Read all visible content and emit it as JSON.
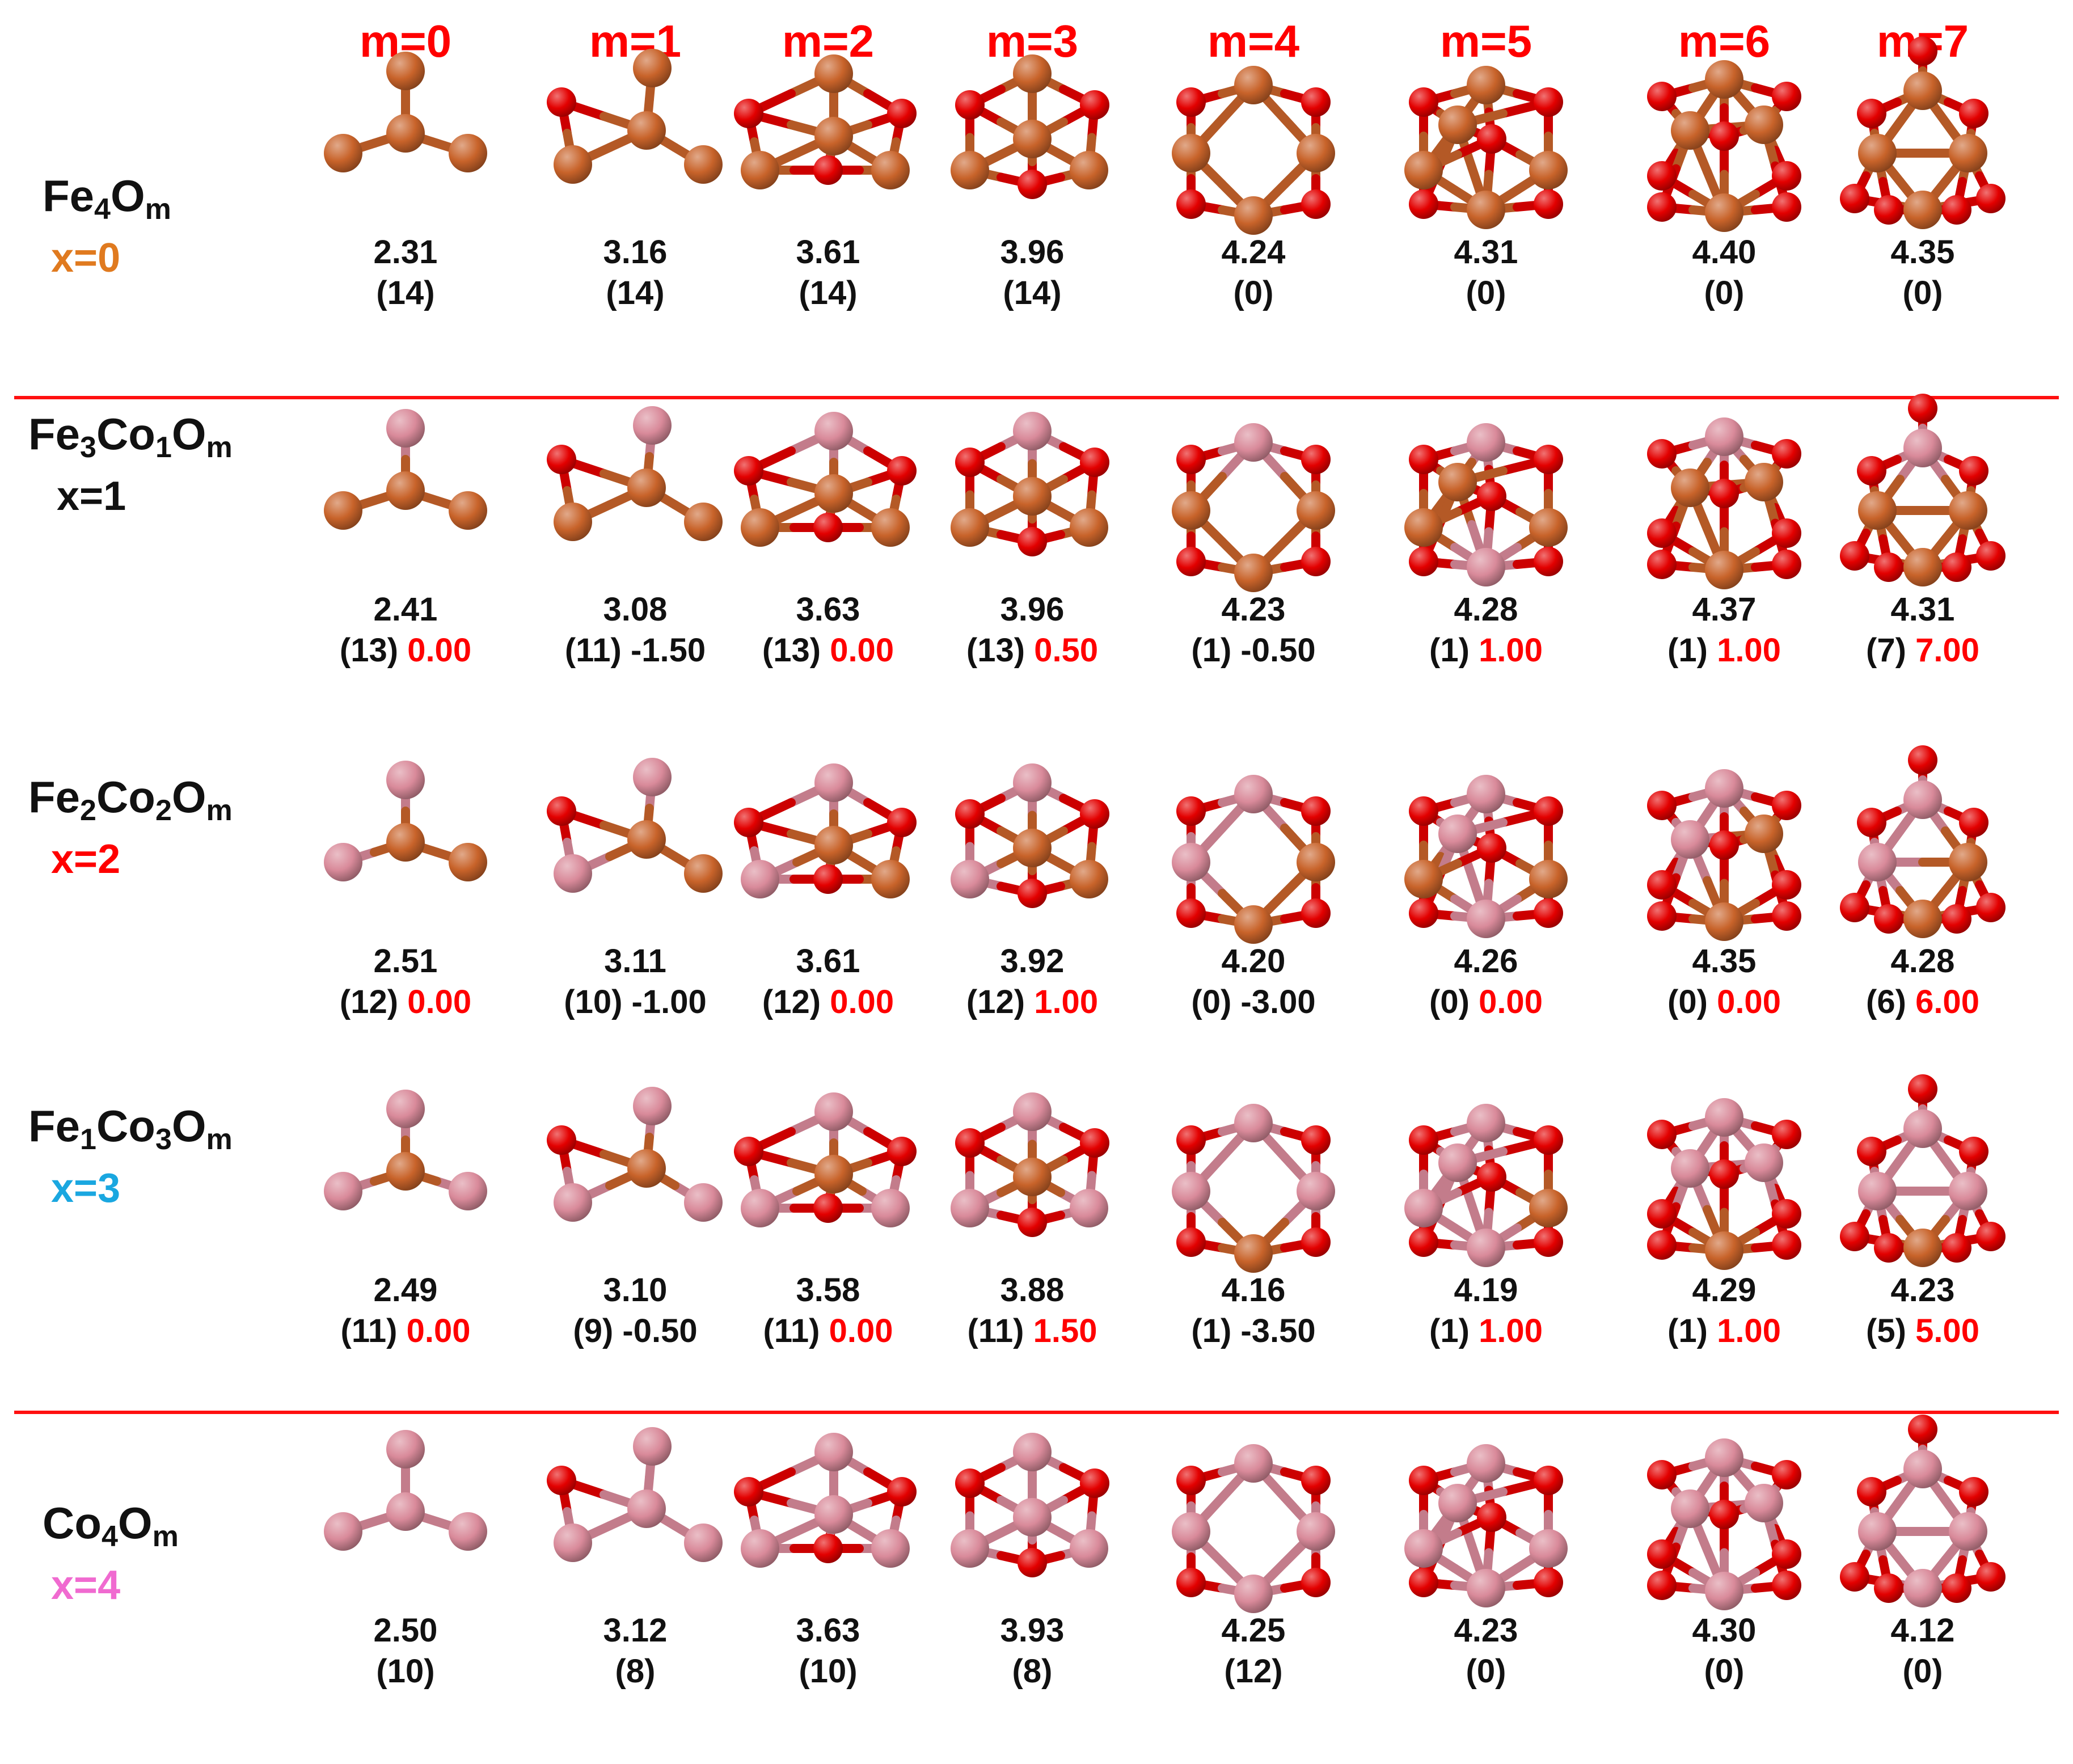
{
  "column_headers": [
    "m=0",
    "m=1",
    "m=2",
    "m=3",
    "m=4",
    "m=5",
    "m=6",
    "m=7"
  ],
  "legend_colors": {
    "Fe": "#c8632a",
    "Co": "#d98a9a",
    "O": "#e30000",
    "separator": "#ff1010"
  },
  "rows": [
    {
      "formula": [
        [
          "Fe",
          "4"
        ],
        [
          "O",
          "m"
        ]
      ],
      "x_label": "x=0",
      "x_color": "#e07a1f",
      "cells": [
        {
          "value": "2.31",
          "count": "(14)",
          "delta": ""
        },
        {
          "value": "3.16",
          "count": "(14)",
          "delta": ""
        },
        {
          "value": "3.61",
          "count": "(14)",
          "delta": ""
        },
        {
          "value": "3.96",
          "count": "(14)",
          "delta": ""
        },
        {
          "value": "4.24",
          "count": "(0)",
          "delta": ""
        },
        {
          "value": "4.31",
          "count": "(0)",
          "delta": ""
        },
        {
          "value": "4.40",
          "count": "(0)",
          "delta": ""
        },
        {
          "value": "4.35",
          "count": "(0)",
          "delta": ""
        }
      ]
    },
    {
      "formula": [
        [
          "Fe",
          "3"
        ],
        [
          "Co",
          "1"
        ],
        [
          "O",
          "m"
        ]
      ],
      "x_label": "x=1",
      "x_color": "#111111",
      "cells": [
        {
          "value": "2.41",
          "count": "(13)",
          "delta": "0.00"
        },
        {
          "value": "3.08",
          "count": "(11)",
          "delta": "-1.50"
        },
        {
          "value": "3.63",
          "count": "(13)",
          "delta": "0.00"
        },
        {
          "value": "3.96",
          "count": "(13)",
          "delta": "0.50"
        },
        {
          "value": "4.23",
          "count": "(1)",
          "delta": "-0.50"
        },
        {
          "value": "4.28",
          "count": "(1)",
          "delta": "1.00"
        },
        {
          "value": "4.37",
          "count": "(1)",
          "delta": "1.00"
        },
        {
          "value": "4.31",
          "count": "(7)",
          "delta": "7.00"
        }
      ]
    },
    {
      "formula": [
        [
          "Fe",
          "2"
        ],
        [
          "Co",
          "2"
        ],
        [
          "O",
          "m"
        ]
      ],
      "x_label": "x=2",
      "x_color": "#ff0000",
      "cells": [
        {
          "value": "2.51",
          "count": "(12)",
          "delta": "0.00"
        },
        {
          "value": "3.11",
          "count": "(10)",
          "delta": "-1.00"
        },
        {
          "value": "3.61",
          "count": "(12)",
          "delta": "0.00"
        },
        {
          "value": "3.92",
          "count": "(12)",
          "delta": "1.00"
        },
        {
          "value": "4.20",
          "count": "(0)",
          "delta": "-3.00"
        },
        {
          "value": "4.26",
          "count": "(0)",
          "delta": "0.00"
        },
        {
          "value": "4.35",
          "count": "(0)",
          "delta": "0.00"
        },
        {
          "value": "4.28",
          "count": "(6)",
          "delta": "6.00"
        }
      ]
    },
    {
      "formula": [
        [
          "Fe",
          "1"
        ],
        [
          "Co",
          "3"
        ],
        [
          "O",
          "m"
        ]
      ],
      "x_label": "x=3",
      "x_color": "#1aa7e0",
      "cells": [
        {
          "value": "2.49",
          "count": "(11)",
          "delta": "0.00"
        },
        {
          "value": "3.10",
          "count": "(9)",
          "delta": "-0.50"
        },
        {
          "value": "3.58",
          "count": "(11)",
          "delta": "0.00"
        },
        {
          "value": "3.88",
          "count": "(11)",
          "delta": "1.50"
        },
        {
          "value": "4.16",
          "count": "(1)",
          "delta": "-3.50"
        },
        {
          "value": "4.19",
          "count": "(1)",
          "delta": "1.00"
        },
        {
          "value": "4.29",
          "count": "(1)",
          "delta": "1.00"
        },
        {
          "value": "4.23",
          "count": "(5)",
          "delta": "5.00"
        }
      ]
    },
    {
      "formula": [
        [
          "Co",
          "4"
        ],
        [
          "O",
          "m"
        ]
      ],
      "x_label": "x=4",
      "x_color": "#f06ad0",
      "cells": [
        {
          "value": "2.50",
          "count": "(10)",
          "delta": ""
        },
        {
          "value": "3.12",
          "count": "(8)",
          "delta": ""
        },
        {
          "value": "3.63",
          "count": "(10)",
          "delta": ""
        },
        {
          "value": "3.93",
          "count": "(8)",
          "delta": ""
        },
        {
          "value": "4.25",
          "count": "(12)",
          "delta": ""
        },
        {
          "value": "4.23",
          "count": "(0)",
          "delta": ""
        },
        {
          "value": "4.30",
          "count": "(0)",
          "delta": ""
        },
        {
          "value": "4.12",
          "count": "(0)",
          "delta": ""
        }
      ]
    }
  ]
}
